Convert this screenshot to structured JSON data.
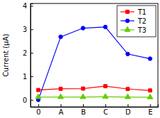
{
  "chart_data": {
    "type": "line",
    "y_label": "Current (μA)",
    "categories": [
      "0",
      "A",
      "B",
      "C",
      "D",
      "E"
    ],
    "series": [
      {
        "name": "T1",
        "color": "#ff0000",
        "marker": "square",
        "line_style": "solid",
        "values": [
          0.42,
          0.47,
          0.48,
          0.58,
          0.46,
          0.4
        ]
      },
      {
        "name": "T2",
        "color": "#0000ff",
        "marker": "circle",
        "line_style": "solid",
        "values": [
          0.0,
          2.68,
          3.05,
          3.1,
          1.95,
          1.75
        ]
      },
      {
        "name": "T3",
        "color": "#66cc00",
        "marker": "triangle",
        "line_style": "solid",
        "values": [
          0.12,
          0.12,
          0.12,
          0.13,
          0.12,
          0.11
        ]
      }
    ],
    "ylim": [
      -0.3,
      4.1
    ],
    "yticks": [
      0,
      1,
      2,
      3,
      4
    ],
    "grid": false,
    "legend": "top-right"
  }
}
